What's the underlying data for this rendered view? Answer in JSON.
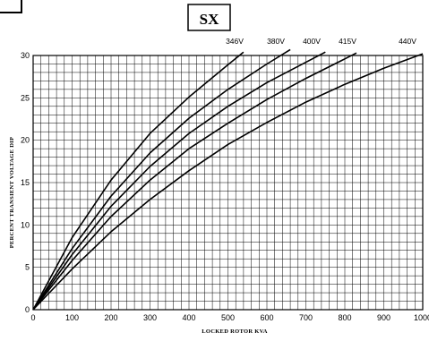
{
  "chart_data": {
    "type": "line",
    "title": "SX",
    "xlabel": "LOCKED ROTOR KVA",
    "ylabel": "PERCENT TRANSIENT VOLTAGE DIP",
    "xlim": [
      0,
      1000
    ],
    "ylim": [
      0,
      30
    ],
    "xticks": [
      0,
      100,
      200,
      300,
      400,
      500,
      600,
      700,
      800,
      900,
      1000
    ],
    "yticks": [
      0,
      5,
      10,
      15,
      20,
      25,
      30
    ],
    "grid": true,
    "x": [
      0,
      100,
      200,
      300,
      400,
      500,
      600,
      700,
      800,
      900,
      1000
    ],
    "series": [
      {
        "name": "346V",
        "x": [
          0,
          100,
          200,
          300,
          400,
          500,
          540
        ],
        "values": [
          0,
          8.5,
          15.3,
          20.8,
          25.1,
          28.9,
          30.4
        ]
      },
      {
        "name": "380V",
        "x": [
          0,
          100,
          200,
          300,
          400,
          500,
          600,
          660
        ],
        "values": [
          0,
          7.2,
          13.4,
          18.5,
          22.6,
          26.0,
          29.0,
          30.7
        ]
      },
      {
        "name": "400V",
        "x": [
          0,
          100,
          200,
          300,
          400,
          500,
          600,
          700,
          750
        ],
        "values": [
          0,
          6.5,
          12.2,
          16.9,
          20.8,
          24.0,
          26.8,
          29.2,
          30.4
        ]
      },
      {
        "name": "415V",
        "x": [
          0,
          100,
          200,
          300,
          400,
          500,
          600,
          700,
          800,
          830
        ],
        "values": [
          0,
          5.8,
          11.0,
          15.3,
          19.0,
          22.0,
          24.8,
          27.3,
          29.6,
          30.3
        ]
      },
      {
        "name": "440V",
        "x": [
          0,
          100,
          200,
          300,
          400,
          500,
          600,
          700,
          800,
          900,
          1000
        ],
        "values": [
          0,
          4.8,
          9.2,
          13.0,
          16.4,
          19.5,
          22.1,
          24.5,
          26.6,
          28.5,
          30.2
        ]
      }
    ]
  }
}
